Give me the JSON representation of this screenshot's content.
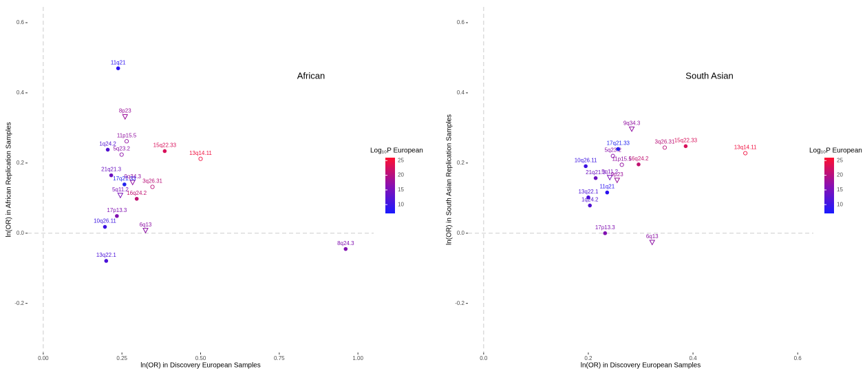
{
  "chart_data": [
    {
      "type": "scatter",
      "title": "African",
      "x_label": "ln(OR) in Discovery European Samples",
      "y_label": "ln(OR) in African Replication Samples",
      "xlim": [
        -0.05,
        1.05
      ],
      "ylim": [
        -0.34,
        0.645
      ],
      "xticks": [
        {
          "value": 0,
          "label": "0.00"
        },
        {
          "value": 0.25,
          "label": "0.25"
        },
        {
          "value": 0.5,
          "label": "0.50"
        },
        {
          "value": 0.75,
          "label": "0.75"
        },
        {
          "value": 1,
          "label": "1.00"
        }
      ],
      "yticks": [
        -0.2,
        {
          "value": 0,
          "label": "0.0"
        },
        0.2,
        0.4,
        0.6
      ],
      "labels": [
        "11q21",
        "8p23",
        "11p15.5",
        "1q24.2",
        "5q23.2",
        "15q22.33",
        "13q14.11",
        "21q21.3",
        "9q34.3",
        "3q26.31",
        "17q21.33",
        "5q11.2",
        "16q24.2",
        "17p13.3",
        "10q26.11",
        "6q13",
        "13q22.1",
        "8q24.3"
      ],
      "x": [
        0.238,
        0.26,
        0.265,
        0.205,
        0.249,
        0.386,
        0.5,
        0.216,
        0.284,
        0.347,
        0.258,
        0.245,
        0.297,
        0.234,
        0.196,
        0.325,
        0.2,
        0.961
      ],
      "y": [
        0.47,
        0.332,
        0.262,
        0.238,
        0.224,
        0.234,
        0.212,
        0.165,
        0.145,
        0.132,
        0.139,
        0.108,
        0.098,
        0.049,
        0.018,
        0.008,
        -0.079,
        -0.045
      ],
      "shapes": [
        "dot",
        "triangle",
        "open",
        "dot",
        "open",
        "dot",
        "open",
        "dot",
        "triangle",
        "open",
        "dot",
        "triangle",
        "dot",
        "dot",
        "dot",
        "triangle",
        "dot",
        "dot"
      ],
      "colors": [
        "#2a10f0",
        "#9a109a",
        "#9010a0",
        "#5010d0",
        "#8a10a8",
        "#d8105a",
        "#f01040",
        "#6a10c0",
        "#9010a0",
        "#b81078",
        "#2222ee",
        "#7a10b8",
        "#c01070",
        "#8010b0",
        "#3a10e0",
        "#8c10a4",
        "#4a10d8",
        "#8010b0"
      ],
      "legend": {
        "title": "Log₁₀P European",
        "clim": [
          7,
          26
        ],
        "ticks": [
          10,
          15,
          20,
          25
        ],
        "colors": [
          "#1a1aff",
          "#8a10b0",
          "#ff1030"
        ]
      }
    },
    {
      "type": "scatter",
      "title": "South Asian",
      "x_label": "ln(OR) in Discovery European Samples",
      "y_label": "ln(OR) in South Asian Replication Samples",
      "xlim": [
        -0.03,
        0.63
      ],
      "ylim": [
        -0.34,
        0.645
      ],
      "xticks": [
        {
          "value": 0,
          "label": "0.0"
        },
        0.2,
        0.4,
        0.6
      ],
      "yticks": [
        -0.2,
        {
          "value": 0,
          "label": "0.0"
        },
        0.2,
        0.4,
        0.6
      ],
      "labels": [
        "9q34.3",
        "15q22.33",
        "13q14.11",
        "3q26.31",
        "17q21.33",
        "16q24.2",
        "10q26.11",
        "5q23.2",
        "11p15.5",
        "5q11.2",
        "21q21.3",
        "9p23",
        "13q22.1",
        "11q21",
        "1q24.2",
        "17p13.3",
        "6q13"
      ],
      "x": [
        0.283,
        0.386,
        0.5,
        0.346,
        0.257,
        0.296,
        0.195,
        0.247,
        0.264,
        0.241,
        0.214,
        0.255,
        0.2,
        0.236,
        0.203,
        0.232,
        0.322
      ],
      "y": [
        0.297,
        0.248,
        0.228,
        0.244,
        0.24,
        0.196,
        0.191,
        0.22,
        0.195,
        0.159,
        0.157,
        0.151,
        0.102,
        0.116,
        0.079,
        0.0,
        -0.026
      ],
      "shapes": [
        "triangle",
        "dot",
        "open",
        "open",
        "dot",
        "dot",
        "dot",
        "open",
        "open",
        "triangle",
        "dot",
        "triangle",
        "dot",
        "dot",
        "dot",
        "dot",
        "triangle"
      ],
      "colors": [
        "#9010a0",
        "#d8105a",
        "#f01040",
        "#b81078",
        "#2222ee",
        "#c01070",
        "#3a10e0",
        "#8a10a8",
        "#9010a0",
        "#7a10b8",
        "#6a10c0",
        "#9a109a",
        "#4a10d8",
        "#2a10f0",
        "#5010d0",
        "#8010b0",
        "#8c10a4"
      ],
      "legend": {
        "title": "Log₁₀P European",
        "clim": [
          7,
          26
        ],
        "ticks": [
          10,
          15,
          20,
          25
        ],
        "colors": [
          "#1a1aff",
          "#8a10b0",
          "#ff1030"
        ]
      }
    }
  ]
}
